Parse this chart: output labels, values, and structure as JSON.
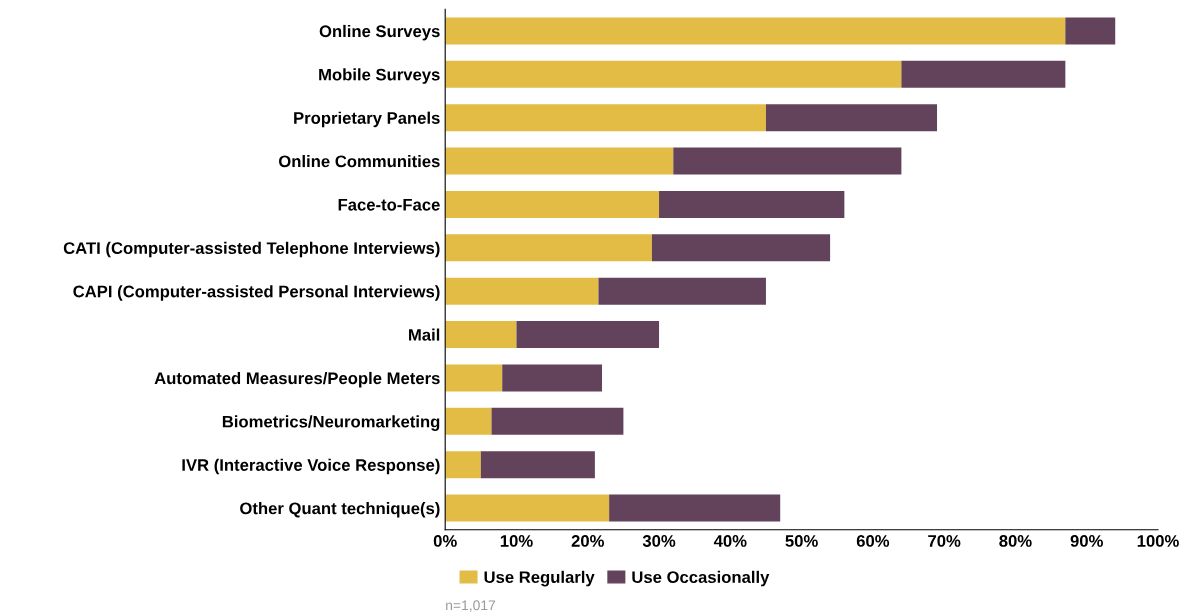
{
  "chart_data": {
    "type": "bar",
    "orientation": "horizontal",
    "stacked": true,
    "categories": [
      "Online Surveys",
      "Mobile Surveys",
      "Proprietary Panels",
      "Online Communities",
      "Face-to-Face",
      "CATI (Computer-assisted Telephone Interviews)",
      "CAPI (Computer-assisted Personal Interviews)",
      "Mail",
      "Automated Measures/People Meters",
      "Biometrics/Neuromarketing",
      "IVR (Interactive Voice Response)",
      "Other Quant technique(s)"
    ],
    "series": [
      {
        "name": "Use Regularly",
        "color": "#e2bc45",
        "values": [
          87,
          64,
          45,
          32,
          30,
          29,
          21.5,
          10,
          8,
          6.5,
          5,
          23
        ]
      },
      {
        "name": "Use Occasionally",
        "color": "#63435c",
        "values": [
          7,
          23,
          24,
          32,
          26,
          25,
          23.5,
          20,
          14,
          18.5,
          16,
          24
        ]
      }
    ],
    "xlim": [
      0,
      100
    ],
    "xticks": [
      {
        "value": 0,
        "label": "0%"
      },
      {
        "value": 10,
        "label": "10%"
      },
      {
        "value": 20,
        "label": "20%"
      },
      {
        "value": 30,
        "label": "30%"
      },
      {
        "value": 40,
        "label": "40%"
      },
      {
        "value": 50,
        "label": "50%"
      },
      {
        "value": 60,
        "label": "60%"
      },
      {
        "value": 70,
        "label": "70%"
      },
      {
        "value": 80,
        "label": "80%"
      },
      {
        "value": 90,
        "label": "90%"
      },
      {
        "value": 100,
        "label": "100%"
      }
    ],
    "legend": "bottom",
    "grid": false,
    "annotations": [
      "n=1,017"
    ]
  }
}
